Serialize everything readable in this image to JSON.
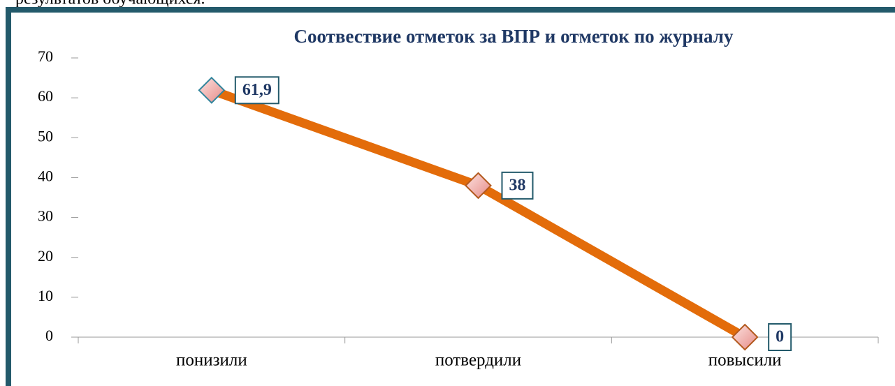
{
  "header_text": "результатов обучающихся.",
  "chart_data": {
    "type": "line",
    "title": "Соотвествие отметок за ВПР и отметок по журналу",
    "categories": [
      "понизили",
      "потвердили",
      "повысили"
    ],
    "values": [
      61.9,
      38,
      0
    ],
    "value_labels": [
      "61,9",
      "38",
      "0"
    ],
    "color": "#e36c0a",
    "marker_color": "#f4a7a3",
    "ylim": [
      0,
      70
    ],
    "yticks": [
      0,
      10,
      20,
      30,
      40,
      50,
      60,
      70
    ],
    "grid": false
  }
}
